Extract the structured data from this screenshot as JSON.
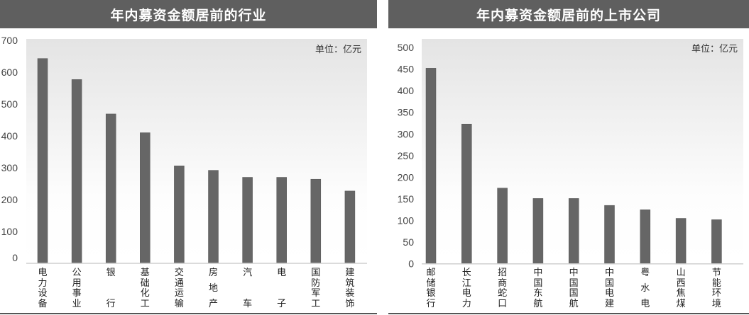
{
  "chart_data": [
    {
      "type": "bar",
      "title": "年内募资金额居前的行业",
      "unit_note": "单位：亿元",
      "categories": [
        "电力设备",
        "公用事业",
        "银行",
        "基础化工",
        "交通运输",
        "房地产",
        "汽车",
        "电子",
        "国防军工",
        "建筑装饰"
      ],
      "values": [
        643,
        577,
        469,
        410,
        306,
        292,
        270,
        270,
        264,
        227
      ],
      "ylim": [
        0,
        700
      ],
      "yticks": [
        "0",
        "100",
        "200",
        "300",
        "400",
        "500",
        "600",
        "700"
      ],
      "bar_color": "#666666",
      "grid": false
    },
    {
      "type": "bar",
      "title": "年内募资金额居前的上市公司",
      "unit_note": "单位：亿元",
      "categories": [
        "邮储银行",
        "长江电力",
        "招商蛇口",
        "中国东航",
        "中国国航",
        "中国电建",
        "粤水电",
        "山西焦煤",
        "节能环境"
      ],
      "values": [
        452,
        323,
        175,
        151,
        151,
        135,
        125,
        105,
        102
      ],
      "ylim": [
        0,
        500
      ],
      "yticks": [
        "0",
        "50",
        "100",
        "150",
        "200",
        "250",
        "300",
        "350",
        "400",
        "450",
        "500"
      ],
      "bar_color": "#666666",
      "grid": false
    }
  ]
}
